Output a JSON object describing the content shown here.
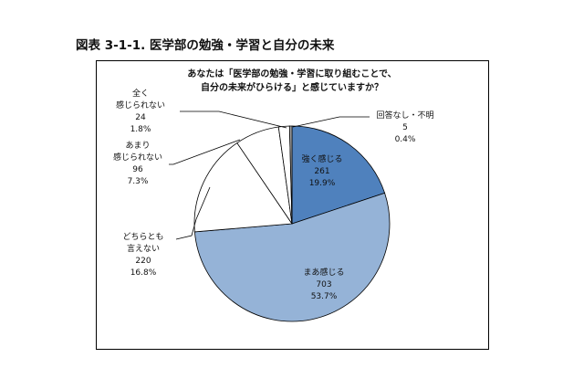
{
  "figure_title": "図表 3-1-1.  医学部の勉強・学習と自分の未来",
  "chart_data": {
    "type": "pie",
    "title": "あなたは「医学部の勉強・学習に取り組むことで、自分の未来がひらける」と感じていますか？",
    "title_lines": [
      "あなたは「医学部の勉強・学習に取り組むことで、",
      "自分の未来がひらける」と感じていますか？"
    ],
    "start": "top, clockwise",
    "slices": [
      {
        "label_lines": [
          "強く感じる"
        ],
        "label": "強く感じる",
        "count": "261",
        "percent": "19.9%",
        "value": 19.9,
        "color": "#4f81bd"
      },
      {
        "label_lines": [
          "まあ感じる"
        ],
        "label": "まあ感じる",
        "count": "703",
        "percent": "53.7%",
        "value": 53.7,
        "color": "#95b3d7"
      },
      {
        "label_lines": [
          "どちらとも",
          "言えない"
        ],
        "label": "どちらとも言えない",
        "count": "220",
        "percent": "16.8%",
        "value": 16.8,
        "color": "#ffffff"
      },
      {
        "label_lines": [
          "あまり",
          "感じられない"
        ],
        "label": "あまり感じられない",
        "count": "96",
        "percent": "7.3%",
        "value": 7.3,
        "color": "#ffffff"
      },
      {
        "label_lines": [
          "全く",
          "感じられない"
        ],
        "label": "全く感じられない",
        "count": "24",
        "percent": "1.8%",
        "value": 1.8,
        "color": "#ffffff"
      },
      {
        "label_lines": [
          "回答なし・不明"
        ],
        "label": "回答なし・不明",
        "count": "5",
        "percent": "0.4%",
        "value": 0.4,
        "color": "#a6a6a6"
      }
    ]
  }
}
